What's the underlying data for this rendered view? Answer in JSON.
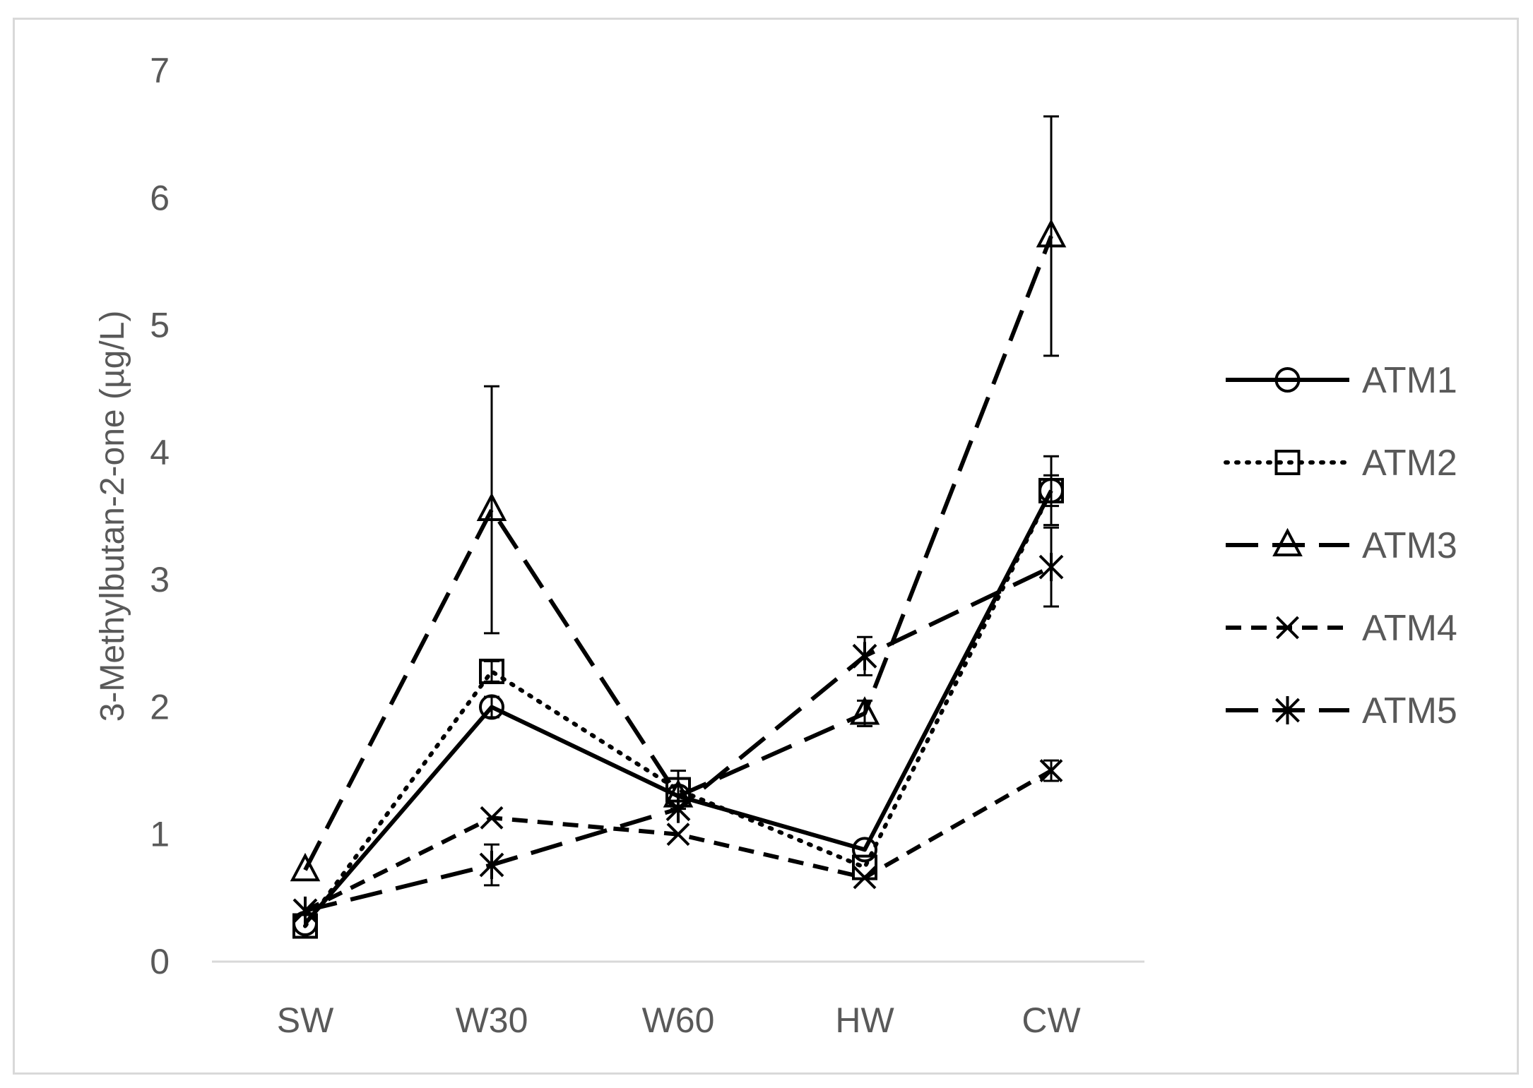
{
  "chart_data": {
    "type": "line",
    "title": "",
    "xlabel": "",
    "ylabel": "3-Methylbutan-2-one (µg/L)",
    "categories": [
      "SW",
      "W30",
      "W60",
      "HW",
      "CW"
    ],
    "ylim": [
      0,
      7
    ],
    "yticks": [
      0,
      1,
      2,
      3,
      4,
      5,
      6,
      7
    ],
    "grid": false,
    "legend_position": "right",
    "series": [
      {
        "name": "ATM1",
        "values": [
          0.3,
          2.0,
          1.3,
          0.88,
          3.7
        ],
        "err": [
          0,
          0.08,
          0,
          0,
          0.12
        ],
        "marker": "circle",
        "dash": "solid"
      },
      {
        "name": "ATM2",
        "values": [
          0.28,
          2.28,
          1.35,
          0.74,
          3.7
        ],
        "err": [
          0,
          0.08,
          0.15,
          0,
          0.27
        ],
        "marker": "square",
        "dash": "dotted"
      },
      {
        "name": "ATM3",
        "values": [
          0.72,
          3.55,
          1.3,
          1.95,
          5.7
        ],
        "err": [
          0,
          0.97,
          0,
          0.1,
          0.94
        ],
        "marker": "triangle",
        "dash": "longdash"
      },
      {
        "name": "ATM4",
        "values": [
          0.4,
          1.13,
          1.0,
          0.66,
          1.5
        ],
        "err": [
          0,
          0,
          0,
          0,
          0.08
        ],
        "marker": "x",
        "dash": "dash"
      },
      {
        "name": "ATM5",
        "values": [
          0.4,
          0.76,
          1.2,
          2.4,
          3.1
        ],
        "err": [
          0,
          0.16,
          0,
          0.15,
          0.31
        ],
        "marker": "asterisk",
        "dash": "longdash"
      }
    ]
  }
}
